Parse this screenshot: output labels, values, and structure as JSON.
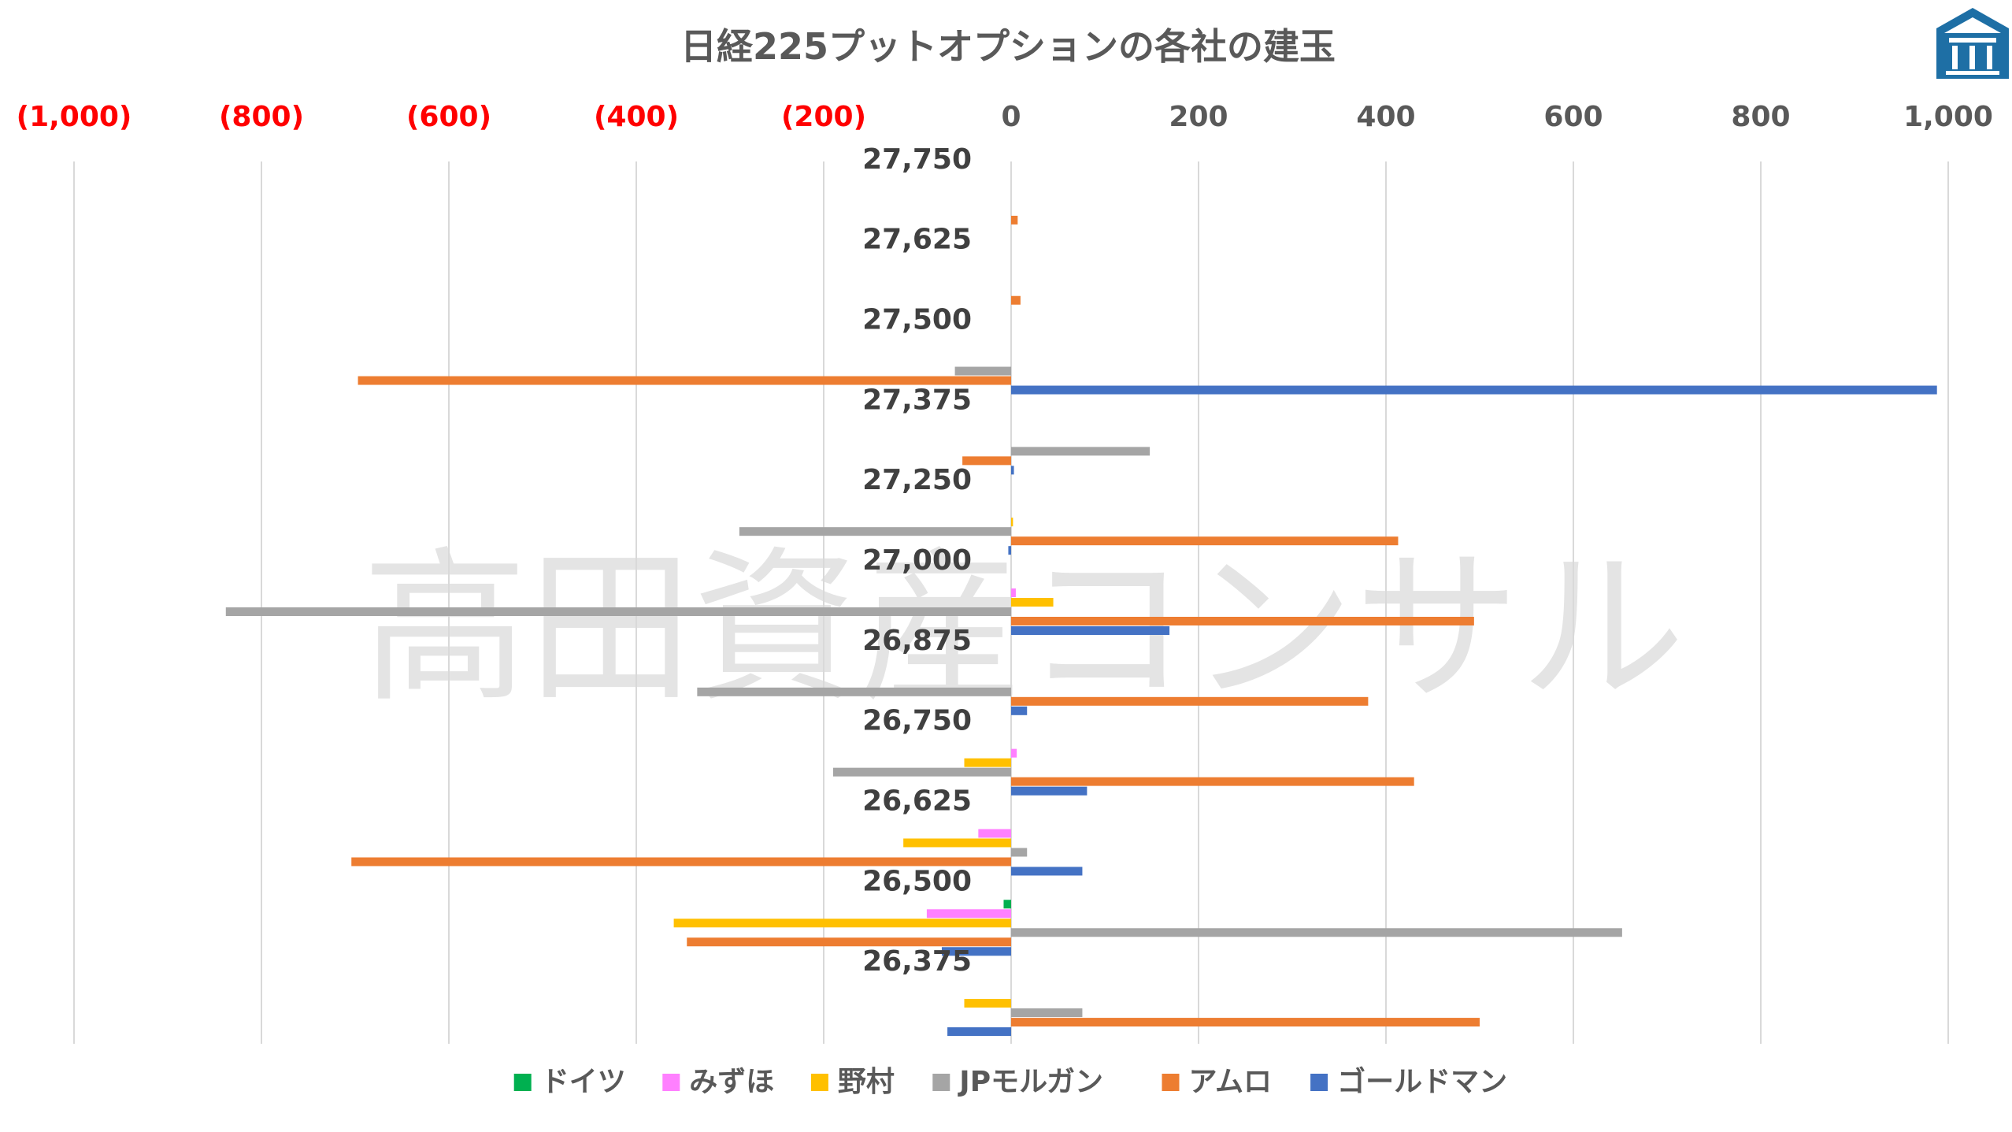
{
  "watermark": "高田資産コンサル",
  "logo_icon": "building-logo-icon",
  "colors": {
    "negative_tick": "#ff0000",
    "positive_tick": "#595959",
    "grid": "#d9d9d9"
  },
  "chart_data": {
    "type": "bar",
    "orientation": "horizontal",
    "title": "日経225プットオプションの各社の建玉",
    "xlim": [
      -1000,
      1000
    ],
    "xticks": [
      -1000,
      -800,
      -600,
      -400,
      -200,
      0,
      200,
      400,
      600,
      800,
      1000
    ],
    "xtick_labels": [
      "(1,000)",
      "(800)",
      "(600)",
      "(400)",
      "(200)",
      "0",
      "200",
      "400",
      "600",
      "800",
      "1,000"
    ],
    "x_axis_position": "top",
    "grid": true,
    "legend_position": "bottom",
    "categories": [
      "27,750",
      "27,625",
      "27,500",
      "27,375",
      "27,250",
      "27,000",
      "26,875",
      "26,750",
      "26,625",
      "26,500",
      "26,375"
    ],
    "series": [
      {
        "name": "ドイツ",
        "color": "#00b050",
        "values": [
          0,
          0,
          0,
          0,
          0,
          0,
          0,
          0,
          0,
          -8,
          0
        ]
      },
      {
        "name": "みずほ",
        "color": "#ff80ff",
        "values": [
          0,
          0,
          0,
          0,
          0,
          5,
          0,
          6,
          -35,
          -90,
          0
        ]
      },
      {
        "name": "野村",
        "color": "#ffc000",
        "values": [
          0,
          0,
          0,
          0,
          2,
          45,
          0,
          -50,
          -115,
          -360,
          -50
        ]
      },
      {
        "name": "JPモルガン",
        "color": "#a5a5a5",
        "values": [
          0,
          0,
          -60,
          148,
          -290,
          -838,
          -335,
          -190,
          17,
          652,
          76
        ]
      },
      {
        "name": "アムロ",
        "color": "#ed7d31",
        "values": [
          7,
          10,
          -697,
          -52,
          413,
          494,
          381,
          430,
          -704,
          -346,
          500
        ]
      },
      {
        "name": "ゴールドマン",
        "color": "#4472c4",
        "values": [
          0,
          0,
          988,
          3,
          -3,
          169,
          17,
          81,
          76,
          -74,
          -68
        ]
      }
    ]
  }
}
